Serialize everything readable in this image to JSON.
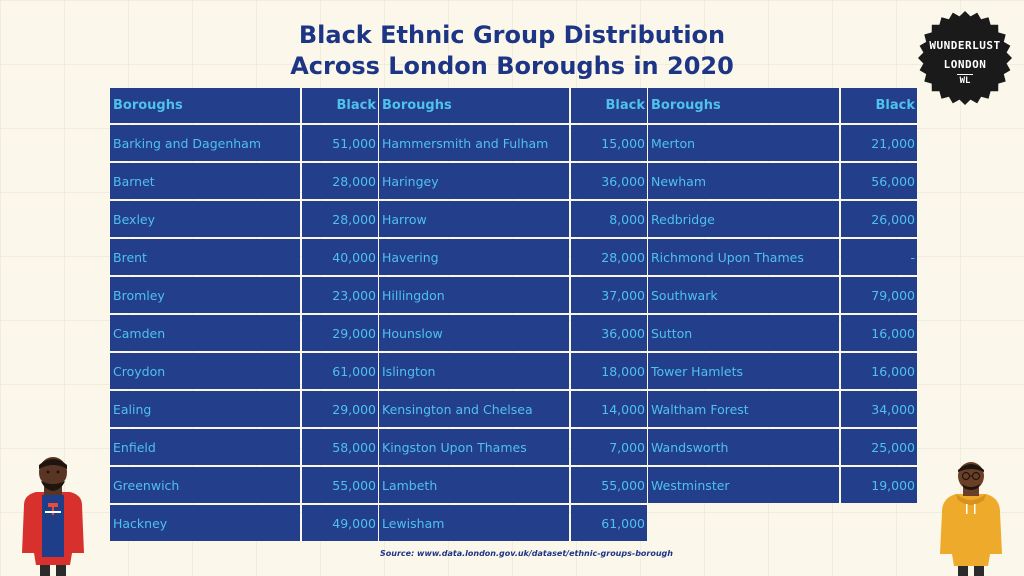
{
  "title_line1": "Black Ethnic Group Distribution",
  "title_line2": "Across London Boroughs in 2020",
  "logo": {
    "line1": "WUNDERLUST",
    "line2": "LONDON",
    "mark": "WL"
  },
  "source": "Source: www.data.london.gov.uk/dataset/ethnic-groups-borough",
  "colors": {
    "background": "#fbf7ea",
    "cell": "#233f8b",
    "cell_text": "#4fc1ec",
    "title": "#1d3585"
  },
  "chart_data": {
    "type": "table",
    "title": "Black Ethnic Group Distribution Across London Boroughs in 2020",
    "headers": [
      "Boroughs",
      "Black"
    ],
    "columns": [
      {
        "header_name": "Boroughs",
        "header_value": "Black",
        "rows": [
          {
            "name": "Barking and Dagenham",
            "value": "51,000"
          },
          {
            "name": "Barnet",
            "value": "28,000"
          },
          {
            "name": "Bexley",
            "value": "28,000"
          },
          {
            "name": "Brent",
            "value": "40,000"
          },
          {
            "name": "Bromley",
            "value": "23,000"
          },
          {
            "name": "Camden",
            "value": "29,000"
          },
          {
            "name": "Croydon",
            "value": "61,000"
          },
          {
            "name": "Ealing",
            "value": "29,000"
          },
          {
            "name": "Enfield",
            "value": "58,000"
          },
          {
            "name": "Greenwich",
            "value": "55,000"
          },
          {
            "name": "Hackney",
            "value": "49,000"
          }
        ]
      },
      {
        "header_name": "Boroughs",
        "header_value": "Black",
        "rows": [
          {
            "name": "Hammersmith and Fulham",
            "value": "15,000"
          },
          {
            "name": "Haringey",
            "value": "36,000"
          },
          {
            "name": "Harrow",
            "value": "8,000"
          },
          {
            "name": "Havering",
            "value": "28,000"
          },
          {
            "name": "Hillingdon",
            "value": "37,000"
          },
          {
            "name": "Hounslow",
            "value": "36,000"
          },
          {
            "name": "Islington",
            "value": "18,000"
          },
          {
            "name": "Kensington and Chelsea",
            "value": "14,000"
          },
          {
            "name": "Kingston Upon Thames",
            "value": "7,000"
          },
          {
            "name": "Lambeth",
            "value": "55,000"
          },
          {
            "name": "Lewisham",
            "value": "61,000"
          }
        ]
      },
      {
        "header_name": "Boroughs",
        "header_value": "Black",
        "rows": [
          {
            "name": "Merton",
            "value": "21,000"
          },
          {
            "name": "Newham",
            "value": "56,000"
          },
          {
            "name": "Redbridge",
            "value": "26,000"
          },
          {
            "name": "Richmond Upon Thames",
            "value": "-"
          },
          {
            "name": "Southwark",
            "value": "79,000"
          },
          {
            "name": "Sutton",
            "value": "16,000"
          },
          {
            "name": "Tower Hamlets",
            "value": "16,000"
          },
          {
            "name": "Waltham Forest",
            "value": "34,000"
          },
          {
            "name": "Wandsworth",
            "value": "25,000"
          },
          {
            "name": "Westminster",
            "value": "19,000"
          }
        ]
      }
    ]
  }
}
